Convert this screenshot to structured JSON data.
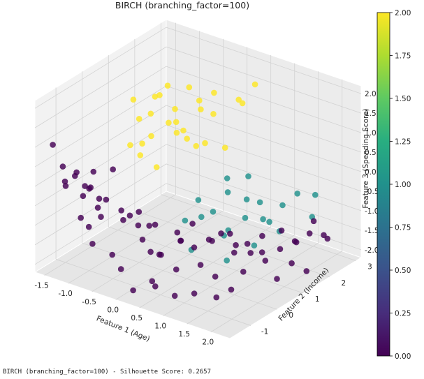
{
  "caption": "BIRCH (branching_factor=100) - Silhouette Score: 0.2657",
  "chart_data": {
    "type": "scatter3d",
    "title": "BIRCH (branching_factor=100)",
    "xlabel": "Feature 1 (Age)",
    "ylabel": "Feature 2 (Income)",
    "zlabel": "Feature 3 (Spending Score)",
    "xlim": [
      -1.7,
      2.4
    ],
    "ylim": [
      -1.8,
      3.2
    ],
    "zlim": [
      -2.2,
      2.2
    ],
    "xticks": [
      "-1.5",
      "-1.0",
      "-0.5",
      "0.0",
      "0.5",
      "1.0",
      "1.5",
      "2.0"
    ],
    "yticks": [
      "-1",
      "0",
      "1",
      "2",
      "3"
    ],
    "zticks": [
      "-2.0",
      "-1.5",
      "-1.0",
      "-0.5",
      "0.0",
      "0.5",
      "1.0",
      "1.5",
      "2.0"
    ],
    "grid": true,
    "colormap": "viridis",
    "colorbar": {
      "min": 0,
      "max": 2,
      "ticks": [
        "0.00",
        "0.25",
        "0.50",
        "0.75",
        "1.00",
        "1.25",
        "1.50",
        "1.75",
        "2.00"
      ]
    },
    "cluster_colors": {
      "0": "#440154",
      "1": "#21918c",
      "2": "#fde725"
    },
    "points": [
      {
        "x": -1.6,
        "y": -1.3,
        "z": 0.9,
        "c": 0
      },
      {
        "x": -1.5,
        "y": -1.1,
        "z": 0.3,
        "c": 0
      },
      {
        "x": -1.55,
        "y": -0.9,
        "z": -0.3,
        "c": 0
      },
      {
        "x": -1.4,
        "y": -1.2,
        "z": 0.0,
        "c": 0
      },
      {
        "x": -1.3,
        "y": -1.0,
        "z": 0.1,
        "c": 0
      },
      {
        "x": -1.2,
        "y": -0.8,
        "z": -0.2,
        "c": 0
      },
      {
        "x": -1.35,
        "y": -0.6,
        "z": -0.6,
        "c": 0
      },
      {
        "x": -1.1,
        "y": -1.3,
        "z": 0.4,
        "c": 0
      },
      {
        "x": -1.0,
        "y": -1.0,
        "z": -0.1,
        "c": 0
      },
      {
        "x": -0.9,
        "y": -0.8,
        "z": -0.4,
        "c": 0
      },
      {
        "x": -1.15,
        "y": -0.4,
        "z": -0.9,
        "c": 0
      },
      {
        "x": -0.8,
        "y": -1.2,
        "z": 0.5,
        "c": 0
      },
      {
        "x": -0.7,
        "y": -0.9,
        "z": -0.3,
        "c": 0
      },
      {
        "x": -0.6,
        "y": -0.5,
        "z": -0.7,
        "c": 0
      },
      {
        "x": -0.75,
        "y": -1.4,
        "z": 0.2,
        "c": 0
      },
      {
        "x": -1.45,
        "y": -0.2,
        "z": -1.6,
        "c": 0
      },
      {
        "x": -1.25,
        "y": -0.1,
        "z": -1.3,
        "c": 0
      },
      {
        "x": -0.5,
        "y": -1.0,
        "z": 0.6,
        "c": 0
      },
      {
        "x": -0.45,
        "y": -0.7,
        "z": -0.8,
        "c": 0
      },
      {
        "x": -0.3,
        "y": -0.4,
        "z": -1.0,
        "c": 0
      },
      {
        "x": -0.2,
        "y": -0.9,
        "z": -0.5,
        "c": 0
      },
      {
        "x": -0.1,
        "y": -0.6,
        "z": -1.2,
        "c": 0
      },
      {
        "x": 0.0,
        "y": -0.3,
        "z": -0.9,
        "c": 0
      },
      {
        "x": 0.1,
        "y": -1.1,
        "z": -0.2,
        "c": 0
      },
      {
        "x": -0.35,
        "y": -1.3,
        "z": -1.4,
        "c": 0
      },
      {
        "x": -0.15,
        "y": -0.2,
        "z": -1.7,
        "c": 0
      },
      {
        "x": 0.2,
        "y": -0.5,
        "z": -1.5,
        "c": 0
      },
      {
        "x": 0.3,
        "y": 0.0,
        "z": -1.1,
        "c": 0
      },
      {
        "x": 0.4,
        "y": -0.8,
        "z": -1.3,
        "c": 0
      },
      {
        "x": 0.5,
        "y": -0.4,
        "z": -1.8,
        "c": 0
      },
      {
        "x": 0.6,
        "y": 0.1,
        "z": -1.4,
        "c": 0
      },
      {
        "x": 0.7,
        "y": -0.6,
        "z": -0.9,
        "c": 0
      },
      {
        "x": 0.8,
        "y": 0.3,
        "z": -1.2,
        "c": 0
      },
      {
        "x": 0.9,
        "y": -0.2,
        "z": -1.6,
        "c": 0
      },
      {
        "x": 1.0,
        "y": 0.4,
        "z": -1.0,
        "c": 0
      },
      {
        "x": 1.1,
        "y": 0.0,
        "z": -1.9,
        "c": 0
      },
      {
        "x": 1.2,
        "y": 0.6,
        "z": -1.3,
        "c": 0
      },
      {
        "x": 1.3,
        "y": 0.2,
        "z": -0.8,
        "c": 0
      },
      {
        "x": 1.4,
        "y": 0.8,
        "z": -1.5,
        "c": 0
      },
      {
        "x": 1.5,
        "y": 0.5,
        "z": -1.1,
        "c": 0
      },
      {
        "x": 1.6,
        "y": 1.0,
        "z": -1.7,
        "c": 0
      },
      {
        "x": 1.7,
        "y": 0.7,
        "z": -0.9,
        "c": 0
      },
      {
        "x": 1.8,
        "y": 1.2,
        "z": -1.4,
        "c": 0
      },
      {
        "x": 1.9,
        "y": 0.9,
        "z": -2.0,
        "c": 0
      },
      {
        "x": 2.0,
        "y": 1.4,
        "z": -1.2,
        "c": 0
      },
      {
        "x": 2.1,
        "y": 1.1,
        "z": -1.6,
        "c": 0
      },
      {
        "x": 2.2,
        "y": 1.6,
        "z": -1.0,
        "c": 0
      },
      {
        "x": 2.3,
        "y": 1.3,
        "z": -1.8,
        "c": 0
      },
      {
        "x": 1.5,
        "y": 1.8,
        "z": -1.3,
        "c": 0
      },
      {
        "x": 1.7,
        "y": 2.0,
        "z": -1.6,
        "c": 0
      },
      {
        "x": 1.9,
        "y": 2.3,
        "z": -1.1,
        "c": 0
      },
      {
        "x": 2.0,
        "y": 2.5,
        "z": -1.5,
        "c": 0
      },
      {
        "x": 1.2,
        "y": 1.6,
        "z": -1.9,
        "c": 0
      },
      {
        "x": 2.3,
        "y": 2.1,
        "z": -1.3,
        "c": 0
      },
      {
        "x": 0.2,
        "y": -1.5,
        "z": -2.0,
        "c": 0
      },
      {
        "x": 0.5,
        "y": -1.2,
        "z": -1.9,
        "c": 0
      },
      {
        "x": 0.8,
        "y": -1.0,
        "z": -2.1,
        "c": 0
      },
      {
        "x": 1.1,
        "y": -0.8,
        "z": -2.0,
        "c": 0
      },
      {
        "x": 1.4,
        "y": -0.5,
        "z": -2.1,
        "c": 0
      },
      {
        "x": 1.6,
        "y": -0.3,
        "z": -1.9,
        "c": 0
      },
      {
        "x": -0.6,
        "y": -1.6,
        "z": -1.1,
        "c": 0
      },
      {
        "x": -0.9,
        "y": -1.5,
        "z": -0.6,
        "c": 0
      },
      {
        "x": 0.0,
        "y": -1.6,
        "z": -1.5,
        "c": 0
      },
      {
        "x": 0.6,
        "y": -1.5,
        "z": -1.6,
        "c": 0
      },
      {
        "x": 0.4,
        "y": 0.4,
        "z": -1.0,
        "c": 0
      },
      {
        "x": 0.7,
        "y": 0.6,
        "z": -1.4,
        "c": 0
      },
      {
        "x": 1.0,
        "y": 0.9,
        "z": -1.7,
        "c": 0
      },
      {
        "x": -0.4,
        "y": 0.2,
        "z": -1.3,
        "c": 0
      },
      {
        "x": 0.1,
        "y": 0.5,
        "z": -1.6,
        "c": 0
      },
      {
        "x": 1.8,
        "y": -0.2,
        "z": -1.4,
        "c": 0
      },
      {
        "x": 0.3,
        "y": 0.8,
        "z": -0.6,
        "c": 1
      },
      {
        "x": 0.5,
        "y": 1.0,
        "z": -0.9,
        "c": 1
      },
      {
        "x": 0.7,
        "y": 1.2,
        "z": -0.4,
        "c": 1
      },
      {
        "x": 0.9,
        "y": 1.5,
        "z": -1.1,
        "c": 1
      },
      {
        "x": 1.1,
        "y": 1.7,
        "z": -0.7,
        "c": 1
      },
      {
        "x": 0.6,
        "y": 1.4,
        "z": -1.5,
        "c": 1
      },
      {
        "x": 0.8,
        "y": 1.8,
        "z": -0.2,
        "c": 1
      },
      {
        "x": 1.0,
        "y": 2.0,
        "z": -1.3,
        "c": 1
      },
      {
        "x": 1.3,
        "y": 2.2,
        "z": -0.9,
        "c": 1
      },
      {
        "x": 0.4,
        "y": 1.6,
        "z": -1.8,
        "c": 1
      },
      {
        "x": 0.2,
        "y": 1.1,
        "z": -1.2,
        "c": 1
      },
      {
        "x": 1.5,
        "y": 2.4,
        "z": -0.6,
        "c": 1
      },
      {
        "x": 0.9,
        "y": 0.8,
        "z": -1.9,
        "c": 1
      },
      {
        "x": 1.2,
        "y": 1.3,
        "z": -1.6,
        "c": 1
      },
      {
        "x": 0.1,
        "y": 0.9,
        "z": -2.0,
        "c": 1
      },
      {
        "x": 1.4,
        "y": 1.9,
        "z": -1.4,
        "c": 1
      },
      {
        "x": 0.6,
        "y": 2.1,
        "z": -1.0,
        "c": 1
      },
      {
        "x": -0.2,
        "y": 1.2,
        "z": -1.5,
        "c": 1
      },
      {
        "x": 1.7,
        "y": 2.6,
        "z": -1.2,
        "c": 1
      },
      {
        "x": 0.3,
        "y": 1.9,
        "z": -0.5,
        "c": 1
      },
      {
        "x": 0.8,
        "y": 2.6,
        "z": -1.7,
        "c": 1
      },
      {
        "x": 1.6,
        "y": 2.9,
        "z": -0.8,
        "c": 1
      },
      {
        "x": -0.9,
        "y": 0.5,
        "z": 1.6,
        "c": 2
      },
      {
        "x": -0.7,
        "y": 0.8,
        "z": 1.2,
        "c": 2
      },
      {
        "x": -0.5,
        "y": 0.6,
        "z": 1.8,
        "c": 2
      },
      {
        "x": -0.3,
        "y": 1.0,
        "z": 1.4,
        "c": 2
      },
      {
        "x": -0.1,
        "y": 0.7,
        "z": 1.0,
        "c": 2
      },
      {
        "x": 0.1,
        "y": 1.2,
        "z": 1.7,
        "c": 2
      },
      {
        "x": -0.6,
        "y": 1.3,
        "z": 0.8,
        "c": 2
      },
      {
        "x": -0.8,
        "y": 1.0,
        "z": 0.5,
        "c": 2
      },
      {
        "x": -0.4,
        "y": 1.5,
        "z": 0.6,
        "c": 2
      },
      {
        "x": -0.2,
        "y": 1.8,
        "z": 1.1,
        "c": 2
      },
      {
        "x": 0.0,
        "y": 1.6,
        "z": 0.4,
        "c": 2
      },
      {
        "x": -1.0,
        "y": 0.9,
        "z": 0.9,
        "c": 2
      },
      {
        "x": -0.7,
        "y": 0.4,
        "z": 0.3,
        "c": 2
      },
      {
        "x": -0.5,
        "y": 1.9,
        "z": 1.5,
        "c": 2
      },
      {
        "x": 0.2,
        "y": 0.9,
        "z": 0.7,
        "c": 2
      },
      {
        "x": -0.3,
        "y": 0.3,
        "z": 0.2,
        "c": 2
      },
      {
        "x": -0.9,
        "y": 1.5,
        "z": 1.3,
        "c": 2
      },
      {
        "x": 0.3,
        "y": 1.4,
        "z": 1.9,
        "c": 2
      },
      {
        "x": -0.1,
        "y": 2.1,
        "z": 0.9,
        "c": 2
      },
      {
        "x": -0.6,
        "y": 2.0,
        "z": 0.1,
        "c": 2
      },
      {
        "x": 0.4,
        "y": 2.3,
        "z": 1.3,
        "c": 2
      },
      {
        "x": -1.1,
        "y": 1.2,
        "z": 0.1,
        "c": 2
      },
      {
        "x": 0.0,
        "y": 0.5,
        "z": 1.4,
        "c": 2
      },
      {
        "x": -0.4,
        "y": 0.9,
        "z": 2.0,
        "c": 2
      },
      {
        "x": 0.5,
        "y": 2.6,
        "z": 1.7,
        "c": 2
      },
      {
        "x": 0.2,
        "y": 2.0,
        "z": 0.2,
        "c": 2
      },
      {
        "x": -0.8,
        "y": 0.2,
        "z": 0.6,
        "c": 2
      },
      {
        "x": 0.1,
        "y": 2.7,
        "z": 1.1,
        "c": 2
      }
    ]
  }
}
